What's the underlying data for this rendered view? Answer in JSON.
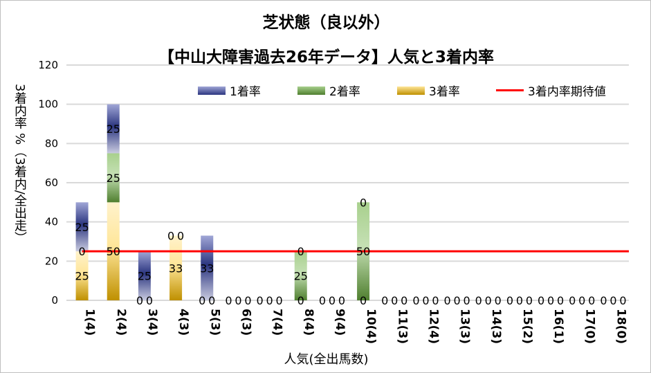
{
  "chart_data": {
    "type": "bar",
    "stacked": true,
    "title": "芝状態（良以外）",
    "subtitle": "【中山大障害過去26年データ】人気と3着内率",
    "xlabel": "人気(全出馬数)",
    "ylabel": "3着内率 %（3着内/全出走）",
    "ylim": [
      0,
      120
    ],
    "yticks": [
      0,
      20,
      40,
      60,
      80,
      100,
      120
    ],
    "grid": true,
    "legend_position": "top",
    "categories": [
      "1(4)",
      "2(4)",
      "3(4)",
      "4(3)",
      "5(3)",
      "6(3)",
      "7(4)",
      "8(4)",
      "9(4)",
      "10(4)",
      "11(3)",
      "12(4)",
      "13(3)",
      "14(3)",
      "15(2)",
      "16(1)",
      "17(0)",
      "18(0)"
    ],
    "series": [
      {
        "name": "3着率",
        "color": "#c89a1c",
        "values": [
          25,
          50,
          0,
          33,
          0,
          0,
          0,
          0,
          0,
          0,
          0,
          0,
          0,
          0,
          0,
          0,
          0,
          0
        ]
      },
      {
        "name": "2着率",
        "color": "#5a8a3a",
        "values": [
          0,
          25,
          0,
          0,
          0,
          0,
          0,
          25,
          0,
          50,
          0,
          0,
          0,
          0,
          0,
          0,
          0,
          0
        ]
      },
      {
        "name": "1着率",
        "color": "#3a4590",
        "values": [
          25,
          25,
          25,
          0,
          33,
          0,
          0,
          0,
          0,
          0,
          0,
          0,
          0,
          0,
          0,
          0,
          0,
          0
        ]
      }
    ],
    "line": {
      "name": "3着内率期待値",
      "color": "#ff0000",
      "value": 25
    },
    "legend_order": [
      "1着率",
      "2着率",
      "3着率",
      "3着内率期待値"
    ]
  }
}
